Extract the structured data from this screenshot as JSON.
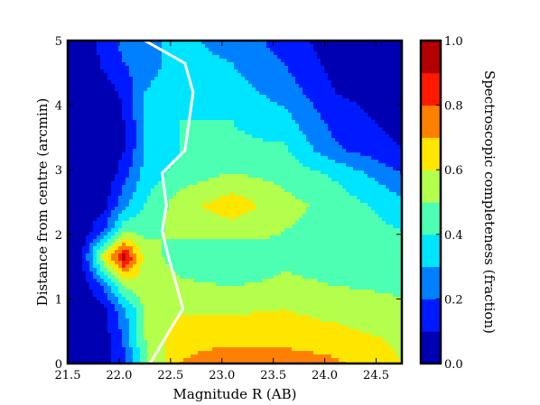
{
  "chart_data": {
    "type": "heatmap",
    "title": "",
    "xlabel": "Magnitude R (AB)",
    "ylabel": "Distance from centre (arcmin)",
    "colorbar_label": "Spectroscopic completeness (fraction)",
    "xlim": [
      21.5,
      24.75
    ],
    "ylim": [
      0,
      5
    ],
    "clim": [
      0.0,
      1.0
    ],
    "colormap": "jet",
    "x_ticks": [
      "21.5",
      "22.0",
      "22.5",
      "23.0",
      "23.5",
      "24.0",
      "24.5"
    ],
    "y_ticks": [
      "0",
      "1",
      "2",
      "3",
      "4",
      "5"
    ],
    "colorbar_ticks": [
      "0.0",
      "0.2",
      "0.4",
      "0.6",
      "0.8",
      "1.0"
    ],
    "contour_levels": [
      0.0,
      0.1,
      0.2,
      0.3,
      0.4,
      0.5,
      0.6,
      0.7,
      0.8,
      0.9,
      1.0
    ],
    "x": [
      21.6,
      21.85,
      22.05,
      22.25,
      22.6,
      23.1,
      23.6,
      24.1,
      24.75
    ],
    "y": [
      0.0,
      0.4,
      0.85,
      1.2,
      1.65,
      2.05,
      2.45,
      2.95,
      3.3,
      3.75,
      4.2,
      4.65,
      5.0
    ],
    "z": [
      [
        0.0,
        0.05,
        0.18,
        0.48,
        0.7,
        0.74,
        0.76,
        0.72,
        0.6
      ],
      [
        0.0,
        0.05,
        0.22,
        0.5,
        0.68,
        0.68,
        0.66,
        0.64,
        0.58
      ],
      [
        0.0,
        0.08,
        0.28,
        0.52,
        0.58,
        0.58,
        0.6,
        0.56,
        0.52
      ],
      [
        0.0,
        0.22,
        0.52,
        0.58,
        0.52,
        0.5,
        0.52,
        0.5,
        0.48
      ],
      [
        0.0,
        0.6,
        0.95,
        0.55,
        0.45,
        0.4,
        0.48,
        0.46,
        0.44
      ],
      [
        0.0,
        0.2,
        0.48,
        0.48,
        0.52,
        0.55,
        0.5,
        0.46,
        0.4
      ],
      [
        0.0,
        0.06,
        0.28,
        0.4,
        0.56,
        0.66,
        0.54,
        0.46,
        0.34
      ],
      [
        0.0,
        0.02,
        0.15,
        0.34,
        0.44,
        0.5,
        0.46,
        0.38,
        0.2
      ],
      [
        0.0,
        0.01,
        0.1,
        0.3,
        0.4,
        0.42,
        0.42,
        0.22,
        0.1
      ],
      [
        0.0,
        0.02,
        0.1,
        0.3,
        0.4,
        0.4,
        0.34,
        0.16,
        0.06
      ],
      [
        0.0,
        0.05,
        0.12,
        0.3,
        0.36,
        0.34,
        0.26,
        0.1,
        0.04
      ],
      [
        0.0,
        0.12,
        0.2,
        0.26,
        0.34,
        0.3,
        0.2,
        0.06,
        0.02
      ],
      [
        0.0,
        0.14,
        0.24,
        0.28,
        0.32,
        0.26,
        0.16,
        0.04,
        0.02
      ]
    ],
    "boundary_line": {
      "color": "#ffffff",
      "x": [
        22.3,
        22.62,
        22.56,
        22.48,
        22.42,
        22.46,
        22.42,
        22.64,
        22.72,
        22.64,
        22.25
      ],
      "y": [
        0.0,
        0.85,
        1.2,
        1.65,
        2.05,
        2.45,
        2.95,
        3.3,
        4.2,
        4.65,
        5.0
      ]
    }
  }
}
